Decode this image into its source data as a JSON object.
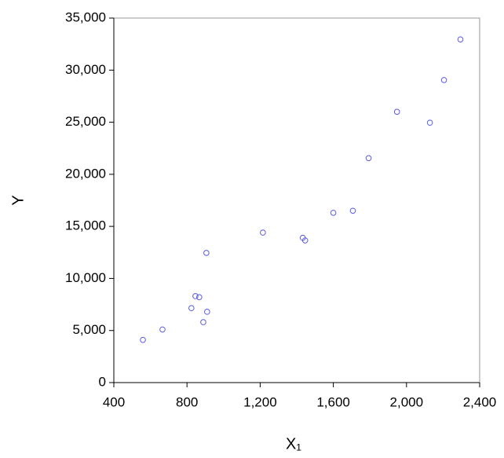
{
  "chart_data": {
    "type": "scatter",
    "xlabel": "X₁",
    "ylabel": "Y",
    "x": [
      559,
      666,
      824,
      846,
      867,
      889,
      906,
      910,
      1215,
      1433,
      1446,
      1600,
      1707,
      1793,
      1948,
      2128,
      2205,
      2295
    ],
    "values": [
      4100,
      5100,
      7150,
      8300,
      8200,
      5800,
      12450,
      6800,
      14400,
      13900,
      13650,
      16300,
      16500,
      21550,
      26000,
      24950,
      29050,
      32950
    ],
    "color": "#5a5ae6",
    "xlim": [
      400,
      2400
    ],
    "xticks": [
      400,
      800,
      {
        "value": 1200,
        "label": "1,200"
      },
      {
        "value": 1600,
        "label": "1,600"
      },
      {
        "value": 2000,
        "label": "2,000"
      },
      {
        "value": 2400,
        "label": "2,400"
      }
    ],
    "ylim": [
      0,
      35000
    ],
    "yticks": [
      0,
      {
        "value": 5000,
        "label": "5,000"
      },
      {
        "value": 10000,
        "label": "10,000"
      },
      {
        "value": 15000,
        "label": "15,000"
      },
      {
        "value": 20000,
        "label": "20,000"
      },
      {
        "value": 25000,
        "label": "25,000"
      },
      {
        "value": 30000,
        "label": "30,000"
      },
      {
        "value": 35000,
        "label": "35,000"
      }
    ],
    "grid": false
  }
}
